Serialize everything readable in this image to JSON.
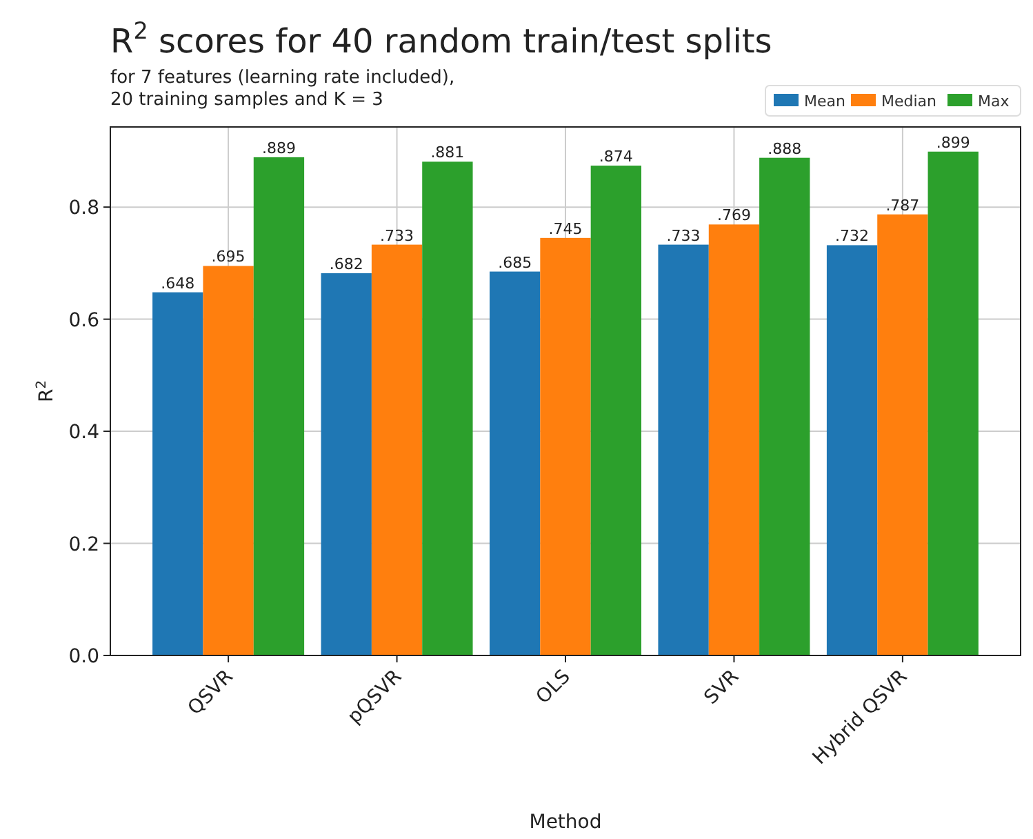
{
  "chart_data": {
    "type": "bar",
    "title": "R$^{2}$ scores for 40 random train/test splits",
    "subtitle": "for 7 features (learning rate included),\n20 training samples and K = 3",
    "xlabel": "Method",
    "ylabel": "R$^{2}$",
    "categories": [
      "QSVR",
      "pQSVR",
      "OLS",
      "SVR",
      "Hybrid QSVR"
    ],
    "series": [
      {
        "name": "Mean",
        "color": "#1f77b4",
        "values": [
          0.648,
          0.682,
          0.685,
          0.733,
          0.732
        ],
        "value_labels": [
          ".648",
          ".682",
          ".685",
          ".733",
          ".732"
        ]
      },
      {
        "name": "Median",
        "color": "#ff7f0e",
        "values": [
          0.695,
          0.733,
          0.745,
          0.769,
          0.787
        ],
        "value_labels": [
          ".695",
          ".733",
          ".745",
          ".769",
          ".787"
        ]
      },
      {
        "name": "Max",
        "color": "#2ca02c",
        "values": [
          0.889,
          0.881,
          0.874,
          0.888,
          0.899
        ],
        "value_labels": [
          ".889",
          ".881",
          ".874",
          ".888",
          ".899"
        ]
      }
    ],
    "ylim": [
      0,
      0.943
    ],
    "yticks": [
      {
        "value": 0,
        "label": "0.0"
      },
      {
        "value": 0.2,
        "label": "0.2"
      },
      {
        "value": 0.4,
        "label": "0.4"
      },
      {
        "value": 0.6,
        "label": "0.6"
      },
      {
        "value": 0.8,
        "label": "0.8"
      }
    ],
    "grid": true,
    "legend": "top right"
  }
}
